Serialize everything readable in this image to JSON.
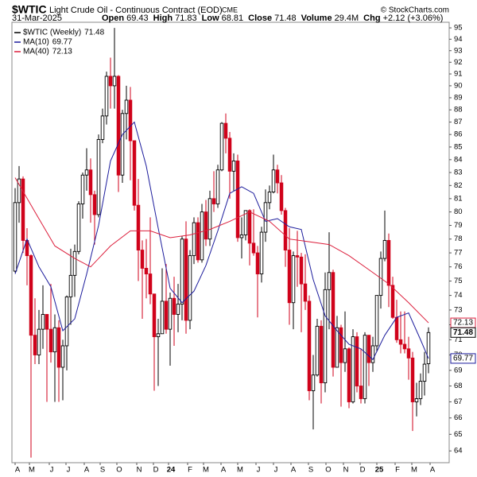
{
  "chart_data": {
    "type": "candlestick",
    "title": "$WTIC",
    "subtitle": "Light Crude Oil - Continuous Contract (EOD)",
    "exchange": "CME",
    "credit": "© StockCharts.com",
    "date": "31-Mar-2025",
    "stats": [
      {
        "label": "Open",
        "text": "69.43"
      },
      {
        "label": "High",
        "text": "71.83"
      },
      {
        "label": "Low",
        "text": "68.81"
      },
      {
        "label": "Close",
        "text": "71.48"
      },
      {
        "label": "Volume",
        "text": "29.4M"
      },
      {
        "label": "Chg",
        "text": "+2.12 (+3.06%)"
      }
    ],
    "log_scale": true,
    "grid": false,
    "up_color": "#000000",
    "down_color": "#d0021b",
    "xlim": [
      -0.8,
      109.2
    ],
    "ylim": [
      63.3,
      95.5
    ],
    "yticks": [
      64,
      65,
      66,
      67,
      68,
      69,
      70,
      71,
      72,
      73,
      74,
      75,
      76,
      77,
      78,
      79,
      80,
      81,
      82,
      83,
      84,
      85,
      86,
      87,
      88,
      89,
      90,
      91,
      92,
      93,
      94,
      95
    ],
    "xticks": [
      {
        "value": 0,
        "label": "A"
      },
      {
        "value": 3.6,
        "label": "M"
      },
      {
        "value": 8.6,
        "label": "J"
      },
      {
        "value": 12.8,
        "label": "J"
      },
      {
        "value": 17.4,
        "label": "A"
      },
      {
        "value": 21.4,
        "label": "S"
      },
      {
        "value": 25.6,
        "label": "O"
      },
      {
        "value": 30.6,
        "label": "N"
      },
      {
        "value": 34.8,
        "label": "D"
      },
      {
        "value": 38.6,
        "label": "24"
      },
      {
        "value": 43.4,
        "label": "F"
      },
      {
        "value": 47.4,
        "label": "M"
      },
      {
        "value": 51.8,
        "label": "A"
      },
      {
        "value": 56,
        "label": "M"
      },
      {
        "value": 60.6,
        "label": "J"
      },
      {
        "value": 65,
        "label": "J"
      },
      {
        "value": 69.4,
        "label": "A"
      },
      {
        "value": 73.8,
        "label": "S"
      },
      {
        "value": 78.2,
        "label": "O"
      },
      {
        "value": 82.6,
        "label": "N"
      },
      {
        "value": 86.8,
        "label": "D"
      },
      {
        "value": 91,
        "label": "25"
      },
      {
        "value": 95.6,
        "label": "F"
      },
      {
        "value": 99.8,
        "label": "M"
      },
      {
        "value": 104.4,
        "label": "A"
      }
    ],
    "candles": {
      "name": "$WTIC (Weekly)",
      "last_label": "71.48",
      "open": [
        75.7,
        80.7,
        82.5,
        77.9,
        76.8,
        71.3,
        70.0,
        71.7,
        72.7,
        71.7,
        70.2,
        71.8,
        69.2,
        70.6,
        73.9,
        75.4,
        77.1,
        80.6,
        82.8,
        83.2,
        81.3,
        79.8,
        85.6,
        87.5,
        90.8,
        90.0,
        90.8,
        82.8,
        87.7,
        88.8,
        85.5,
        80.5,
        77.2,
        75.9,
        75.5,
        74.1,
        71.2,
        71.4,
        73.6,
        71.7,
        73.8,
        72.7,
        73.4,
        78.0,
        72.3,
        76.8,
        79.2,
        76.5,
        80.0,
        78.0,
        81.0,
        80.6,
        83.2,
        86.9,
        85.7,
        83.1,
        83.9,
        78.1,
        78.3,
        80.1,
        77.7,
        77.0,
        75.5,
        78.5,
        80.7,
        81.5,
        83.2,
        82.2,
        80.1,
        77.2,
        73.5,
        76.8,
        76.7,
        74.8,
        73.6,
        67.7,
        68.7,
        71.9,
        68.2,
        74.4,
        75.6,
        69.2,
        71.8,
        69.5,
        70.4,
        67.0,
        71.2,
        68.0,
        67.2,
        71.3,
        69.5,
        70.6,
        74.0,
        76.6,
        77.9,
        74.7,
        72.5,
        71.0,
        70.7,
        70.4,
        69.8,
        67.0,
        67.2,
        68.3,
        69.43
      ],
      "high": [
        81.8,
        83.5,
        82.7,
        78.8,
        76.9,
        73.8,
        73.0,
        74.7,
        72.6,
        74.8,
        72.7,
        72.3,
        71.0,
        74.0,
        77.3,
        77.6,
        80.8,
        83.0,
        84.9,
        84.1,
        81.6,
        86.0,
        88.1,
        91.2,
        92.4,
        95.0,
        90.9,
        88.0,
        90.0,
        89.9,
        85.5,
        82.5,
        77.9,
        78.0,
        79.6,
        74.1,
        72.4,
        75.9,
        76.2,
        74.2,
        75.3,
        74.8,
        78.2,
        79.3,
        77.2,
        79.6,
        79.6,
        80.6,
        80.9,
        81.6,
        83.1,
        83.6,
        87.0,
        87.7,
        86.2,
        84.5,
        84.4,
        79.6,
        80.1,
        80.2,
        80.2,
        77.5,
        78.9,
        81.7,
        82.0,
        84.4,
        83.6,
        82.8,
        80.3,
        78.8,
        77.1,
        78.6,
        77.0,
        76.9,
        74.0,
        70.0,
        72.4,
        72.3,
        75.6,
        78.5,
        75.8,
        72.6,
        72.0,
        72.9,
        70.5,
        71.7,
        71.5,
        70.4,
        71.5,
        71.3,
        71.2,
        74.0,
        77.1,
        80.1,
        78.4,
        75.3,
        73.7,
        72.9,
        72.9,
        71.2,
        70.2,
        68.2,
        68.8,
        70.2,
        71.83
      ],
      "low": [
        75.6,
        79.2,
        77.0,
        74.7,
        63.6,
        69.4,
        69.4,
        70.4,
        67.0,
        69.5,
        67.0,
        67.0,
        67.1,
        69.0,
        72.0,
        73.9,
        76.9,
        79.5,
        81.6,
        79.2,
        77.6,
        79.6,
        85.3,
        86.8,
        88.1,
        88.1,
        81.5,
        82.2,
        85.6,
        82.4,
        80.1,
        75.0,
        72.4,
        73.8,
        73.4,
        67.7,
        68.0,
        71.4,
        71.4,
        69.3,
        70.6,
        71.5,
        72.3,
        71.4,
        71.7,
        76.2,
        76.3,
        76.3,
        77.5,
        77.5,
        80.0,
        80.3,
        83.1,
        84.5,
        81.0,
        81.6,
        77.8,
        76.6,
        77.9,
        76.1,
        76.8,
        72.5,
        74.9,
        77.8,
        80.2,
        81.4,
        81.4,
        79.8,
        76.0,
        72.0,
        71.7,
        74.6,
        71.5,
        73.0,
        67.1,
        65.3,
        68.6,
        66.9,
        67.6,
        71.7,
        68.6,
        69.2,
        66.7,
        68.9,
        66.6,
        66.9,
        67.6,
        66.9,
        66.9,
        68.0,
        68.9,
        70.2,
        73.1,
        76.4,
        73.2,
        72.4,
        70.8,
        70.1,
        70.1,
        68.4,
        65.2,
        66.1,
        66.8,
        67.4,
        68.81
      ],
      "close": [
        80.7,
        82.5,
        77.9,
        76.8,
        71.3,
        70.0,
        71.7,
        72.7,
        71.7,
        70.2,
        71.8,
        69.2,
        70.6,
        73.9,
        75.4,
        77.1,
        80.6,
        82.8,
        83.2,
        81.3,
        79.8,
        85.6,
        87.5,
        90.8,
        90.0,
        90.8,
        82.8,
        87.7,
        88.8,
        85.5,
        80.5,
        77.2,
        75.9,
        75.5,
        74.1,
        71.2,
        71.4,
        73.6,
        71.7,
        73.8,
        72.7,
        73.4,
        78.0,
        72.3,
        76.8,
        79.2,
        76.5,
        80.0,
        78.0,
        81.0,
        80.6,
        83.2,
        86.9,
        85.7,
        83.1,
        83.9,
        78.1,
        78.3,
        80.1,
        77.7,
        77.0,
        75.5,
        78.5,
        80.7,
        81.5,
        83.2,
        82.2,
        80.1,
        77.2,
        73.5,
        76.8,
        76.7,
        74.8,
        73.6,
        67.7,
        68.7,
        71.9,
        68.2,
        74.4,
        75.6,
        69.2,
        71.8,
        69.5,
        70.4,
        67.0,
        71.2,
        68.0,
        67.2,
        71.3,
        69.5,
        70.6,
        74.0,
        76.6,
        77.9,
        74.7,
        72.5,
        71.0,
        70.7,
        70.4,
        69.8,
        67.0,
        67.2,
        68.3,
        69.4,
        71.48
      ]
    },
    "series": [
      {
        "name": "MA(10)",
        "last_label": "69.77",
        "color": "#1c1c9c",
        "x": [
          0,
          3,
          6,
          9,
          12,
          15,
          18,
          21,
          24,
          27,
          30,
          33,
          36,
          39,
          42,
          45,
          48,
          51,
          54,
          57,
          60,
          63,
          66,
          69,
          72,
          75,
          78,
          81,
          84,
          87,
          90,
          93,
          96,
          99,
          102,
          104
        ],
        "values": [
          75.5,
          78,
          76,
          74.6,
          71.6,
          72.4,
          75.5,
          79.0,
          83.9,
          86.0,
          87.0,
          83.5,
          78.8,
          74.5,
          73.5,
          74.3,
          76.1,
          78.6,
          81.4,
          81.9,
          81.4,
          79.3,
          79.5,
          78.9,
          78.7,
          75.1,
          72.6,
          71.6,
          70.7,
          70.4,
          69.7,
          71.3,
          72.5,
          72.8,
          71.0,
          69.77
        ]
      },
      {
        "name": "MA(40)",
        "last_label": "72.13",
        "color": "#dc1f3c",
        "x": [
          0,
          5,
          10,
          15,
          19,
          24,
          29,
          34,
          39,
          44,
          49,
          54,
          59,
          64,
          69,
          74,
          79,
          84,
          89,
          94,
          99,
          104
        ],
        "values": [
          82.6,
          80,
          77.5,
          76.6,
          76.0,
          77.5,
          78.6,
          78.6,
          78.1,
          78.3,
          78.7,
          79.3,
          80.0,
          79.3,
          78.0,
          77.8,
          77.6,
          76.8,
          75.8,
          74.8,
          73.5,
          72.13
        ]
      }
    ]
  }
}
